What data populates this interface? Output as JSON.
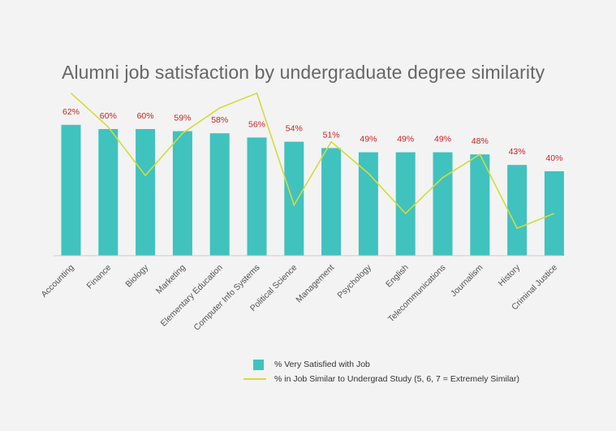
{
  "chart_data": {
    "type": "bar",
    "title": "Alumni job satisfaction by undergraduate degree similarity",
    "categories": [
      "Accounting",
      "Finance",
      "Biology",
      "Marketing",
      "Elementary Education",
      "Computer Info Systems",
      "Political Science",
      "Management",
      "Psychology",
      "English",
      "Telecommunications",
      "Journalism",
      "History",
      "Criminal Justice"
    ],
    "series": [
      {
        "name": "% Very Satisfied with Job",
        "type": "bar",
        "values": [
          62,
          60,
          60,
          59,
          58,
          56,
          54,
          51,
          49,
          49,
          49,
          48,
          43,
          40
        ],
        "labels": [
          "62%",
          "60%",
          "60%",
          "59%",
          "58%",
          "56%",
          "54%",
          "51%",
          "49%",
          "49%",
          "49%",
          "48%",
          "43%",
          "40%"
        ],
        "color": "#40c2bf"
      },
      {
        "name": "% in Job Similar to Undergrad Study (5, 6, 7 = Extremely Similar)",
        "type": "line",
        "values": [
          77,
          61,
          38,
          58,
          70,
          77,
          24,
          54,
          39,
          20,
          37,
          48,
          13,
          20
        ],
        "color": "#d2dc3a"
      }
    ],
    "ylim": [
      0,
      80
    ],
    "grid": false,
    "legend_position": "bottom"
  }
}
